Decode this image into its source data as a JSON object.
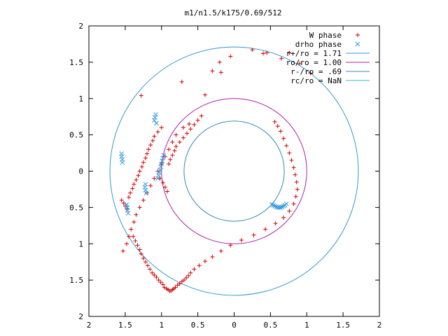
{
  "chart_data": {
    "type": "scatter",
    "title": "m1/n1.5/k175/0.69/512",
    "xlim": [
      -2,
      2
    ],
    "ylim": [
      -2,
      2
    ],
    "x_ticks": [
      -2,
      -1.5,
      -1,
      -0.5,
      0,
      0.5,
      1,
      1.5,
      2
    ],
    "y_ticks": [
      -2,
      -1.5,
      -1,
      -0.5,
      0,
      0.5,
      1,
      1.5,
      2
    ],
    "x_tick_labels": [
      "2",
      "1.5",
      "1",
      "0.5",
      "0",
      "0.5",
      "1",
      "1.5",
      "2"
    ],
    "y_tick_labels": [
      "2",
      "1.5",
      "1",
      "0.5",
      "0",
      "0.5",
      "1",
      "1.5",
      "2"
    ],
    "grid": false,
    "legend_position": "top-right",
    "series": [
      {
        "name": "W phase",
        "marker": "plus",
        "color": "#cc0000",
        "x": [
          -1.5,
          -1.52,
          -1.55,
          -1.48,
          -1.45,
          -1.43,
          -1.4,
          -1.38,
          -1.35,
          -1.32,
          -1.3,
          -1.27,
          -1.25,
          -1.22,
          -1.2,
          -1.18,
          -1.15,
          -1.12,
          -1.1,
          -1.05,
          -1.0,
          -1.02,
          -0.98,
          -0.95,
          -0.92,
          -0.9,
          -0.88,
          -0.85,
          -0.82,
          -0.8,
          -0.75,
          -0.7,
          -0.65,
          -0.6,
          -0.55,
          -0.5,
          -0.45,
          -0.4,
          -0.3,
          -0.2,
          -0.05,
          0.25,
          0.45,
          0.65,
          0.9,
          1.05,
          -1.53,
          -1.48,
          -1.45,
          -1.42,
          -1.38,
          -1.35,
          -1.3,
          -1.25,
          -1.2,
          -1.15,
          -1.1,
          -1.05,
          -1.0,
          -0.95,
          -0.9,
          -0.85,
          -0.8,
          -0.7,
          -0.62,
          -1.28,
          -0.72,
          -0.18,
          0.4,
          0.76,
          -1.39,
          -1.36,
          -1.33,
          -1.3,
          -1.28,
          -1.25,
          -1.22,
          -1.19,
          -1.16,
          -1.13,
          -1.1,
          -1.07,
          -1.04,
          -1.01,
          -0.98,
          -0.96,
          -0.93,
          -0.91,
          -0.89,
          -0.87,
          -0.85,
          -0.83,
          -0.81,
          -0.78,
          -0.75,
          -0.72,
          -0.69,
          -0.66,
          -0.63,
          -0.6,
          -0.55,
          -0.48,
          -0.4,
          -0.3,
          -0.18,
          -0.05,
          0.1,
          0.27,
          0.43,
          0.57,
          0.68,
          0.76,
          0.82,
          0.85,
          0.87,
          0.86,
          0.84,
          0.82,
          0.79,
          0.76,
          0.72,
          0.68,
          0.64,
          0.6,
          0.56
        ],
        "y": [
          -0.48,
          -0.44,
          -0.4,
          -0.52,
          -0.36,
          -0.3,
          -0.24,
          -0.18,
          -0.12,
          -0.06,
          0.0,
          0.06,
          0.12,
          0.18,
          0.24,
          0.3,
          0.36,
          0.42,
          0.48,
          0.54,
          0.6,
          -0.1,
          -0.16,
          -0.22,
          -0.28,
          0.1,
          0.16,
          0.22,
          0.28,
          0.34,
          0.4,
          0.46,
          0.52,
          0.58,
          0.64,
          0.7,
          0.76,
          1.05,
          1.38,
          1.5,
          1.58,
          1.67,
          1.63,
          1.55,
          1.48,
          1.35,
          -1.1,
          -1.0,
          -0.9,
          -0.8,
          -0.7,
          -0.6,
          -0.5,
          -0.4,
          -0.3,
          -0.2,
          -0.1,
          0.0,
          0.1,
          0.2,
          0.3,
          0.4,
          0.5,
          0.6,
          0.65,
          1.04,
          1.23,
          1.36,
          1.62,
          1.63,
          -0.9,
          -0.96,
          -1.02,
          -1.08,
          -1.14,
          -1.2,
          -1.25,
          -1.3,
          -1.35,
          -1.4,
          -1.43,
          -1.46,
          -1.5,
          -1.53,
          -1.56,
          -1.6,
          -1.62,
          -1.63,
          -1.65,
          -1.65,
          -1.63,
          -1.62,
          -1.6,
          -1.57,
          -1.55,
          -1.52,
          -1.5,
          -1.47,
          -1.44,
          -1.4,
          -1.35,
          -1.3,
          -1.24,
          -1.18,
          -1.1,
          -1.02,
          -0.95,
          -0.88,
          -0.8,
          -0.72,
          -0.64,
          -0.55,
          -0.45,
          -0.35,
          -0.25,
          -0.15,
          -0.05,
          0.05,
          0.15,
          0.25,
          0.35,
          0.45,
          0.55,
          0.62,
          0.68
        ]
      },
      {
        "name": "drho phase",
        "marker": "cross",
        "color": "#3399dd",
        "x": [
          -1.55,
          -1.55,
          -1.54,
          -1.54,
          -1.48,
          -1.47,
          -1.47,
          -1.46,
          -1.23,
          -1.22,
          -1.22,
          -1.21,
          -1.1,
          -1.09,
          -1.08,
          -1.07,
          -1.05,
          -1.04,
          -1.03,
          -1.02,
          -1.01,
          -1.0,
          -0.99,
          -0.98,
          -0.97,
          0.52,
          0.54,
          0.56,
          0.58,
          0.6,
          0.62,
          0.64,
          0.66,
          0.68,
          0.7,
          0.72
        ],
        "y": [
          0.24,
          0.2,
          0.16,
          0.12,
          -0.46,
          -0.5,
          -0.54,
          -0.58,
          -0.22,
          -0.26,
          -0.18,
          -0.3,
          0.7,
          0.74,
          0.78,
          0.66,
          -0.1,
          -0.06,
          -0.02,
          0.02,
          0.06,
          0.1,
          0.14,
          0.18,
          0.22,
          -0.46,
          -0.47,
          -0.48,
          -0.49,
          -0.5,
          -0.5,
          -0.5,
          -0.49,
          -0.48,
          -0.47,
          -0.45
        ]
      },
      {
        "name": "r+/ro = 1.71",
        "kind": "circle",
        "radius": 1.71,
        "color": "#3399cc"
      },
      {
        "name": "ro/ro = 1.00",
        "kind": "circle",
        "radius": 1.0,
        "color": "#aa22aa"
      },
      {
        "name": "r-/ro = .69",
        "kind": "circle",
        "radius": 0.69,
        "color": "#3388bb"
      },
      {
        "name": "rc/ro = NaN",
        "kind": "circle",
        "radius": null,
        "color": "#33bbcc"
      }
    ]
  }
}
